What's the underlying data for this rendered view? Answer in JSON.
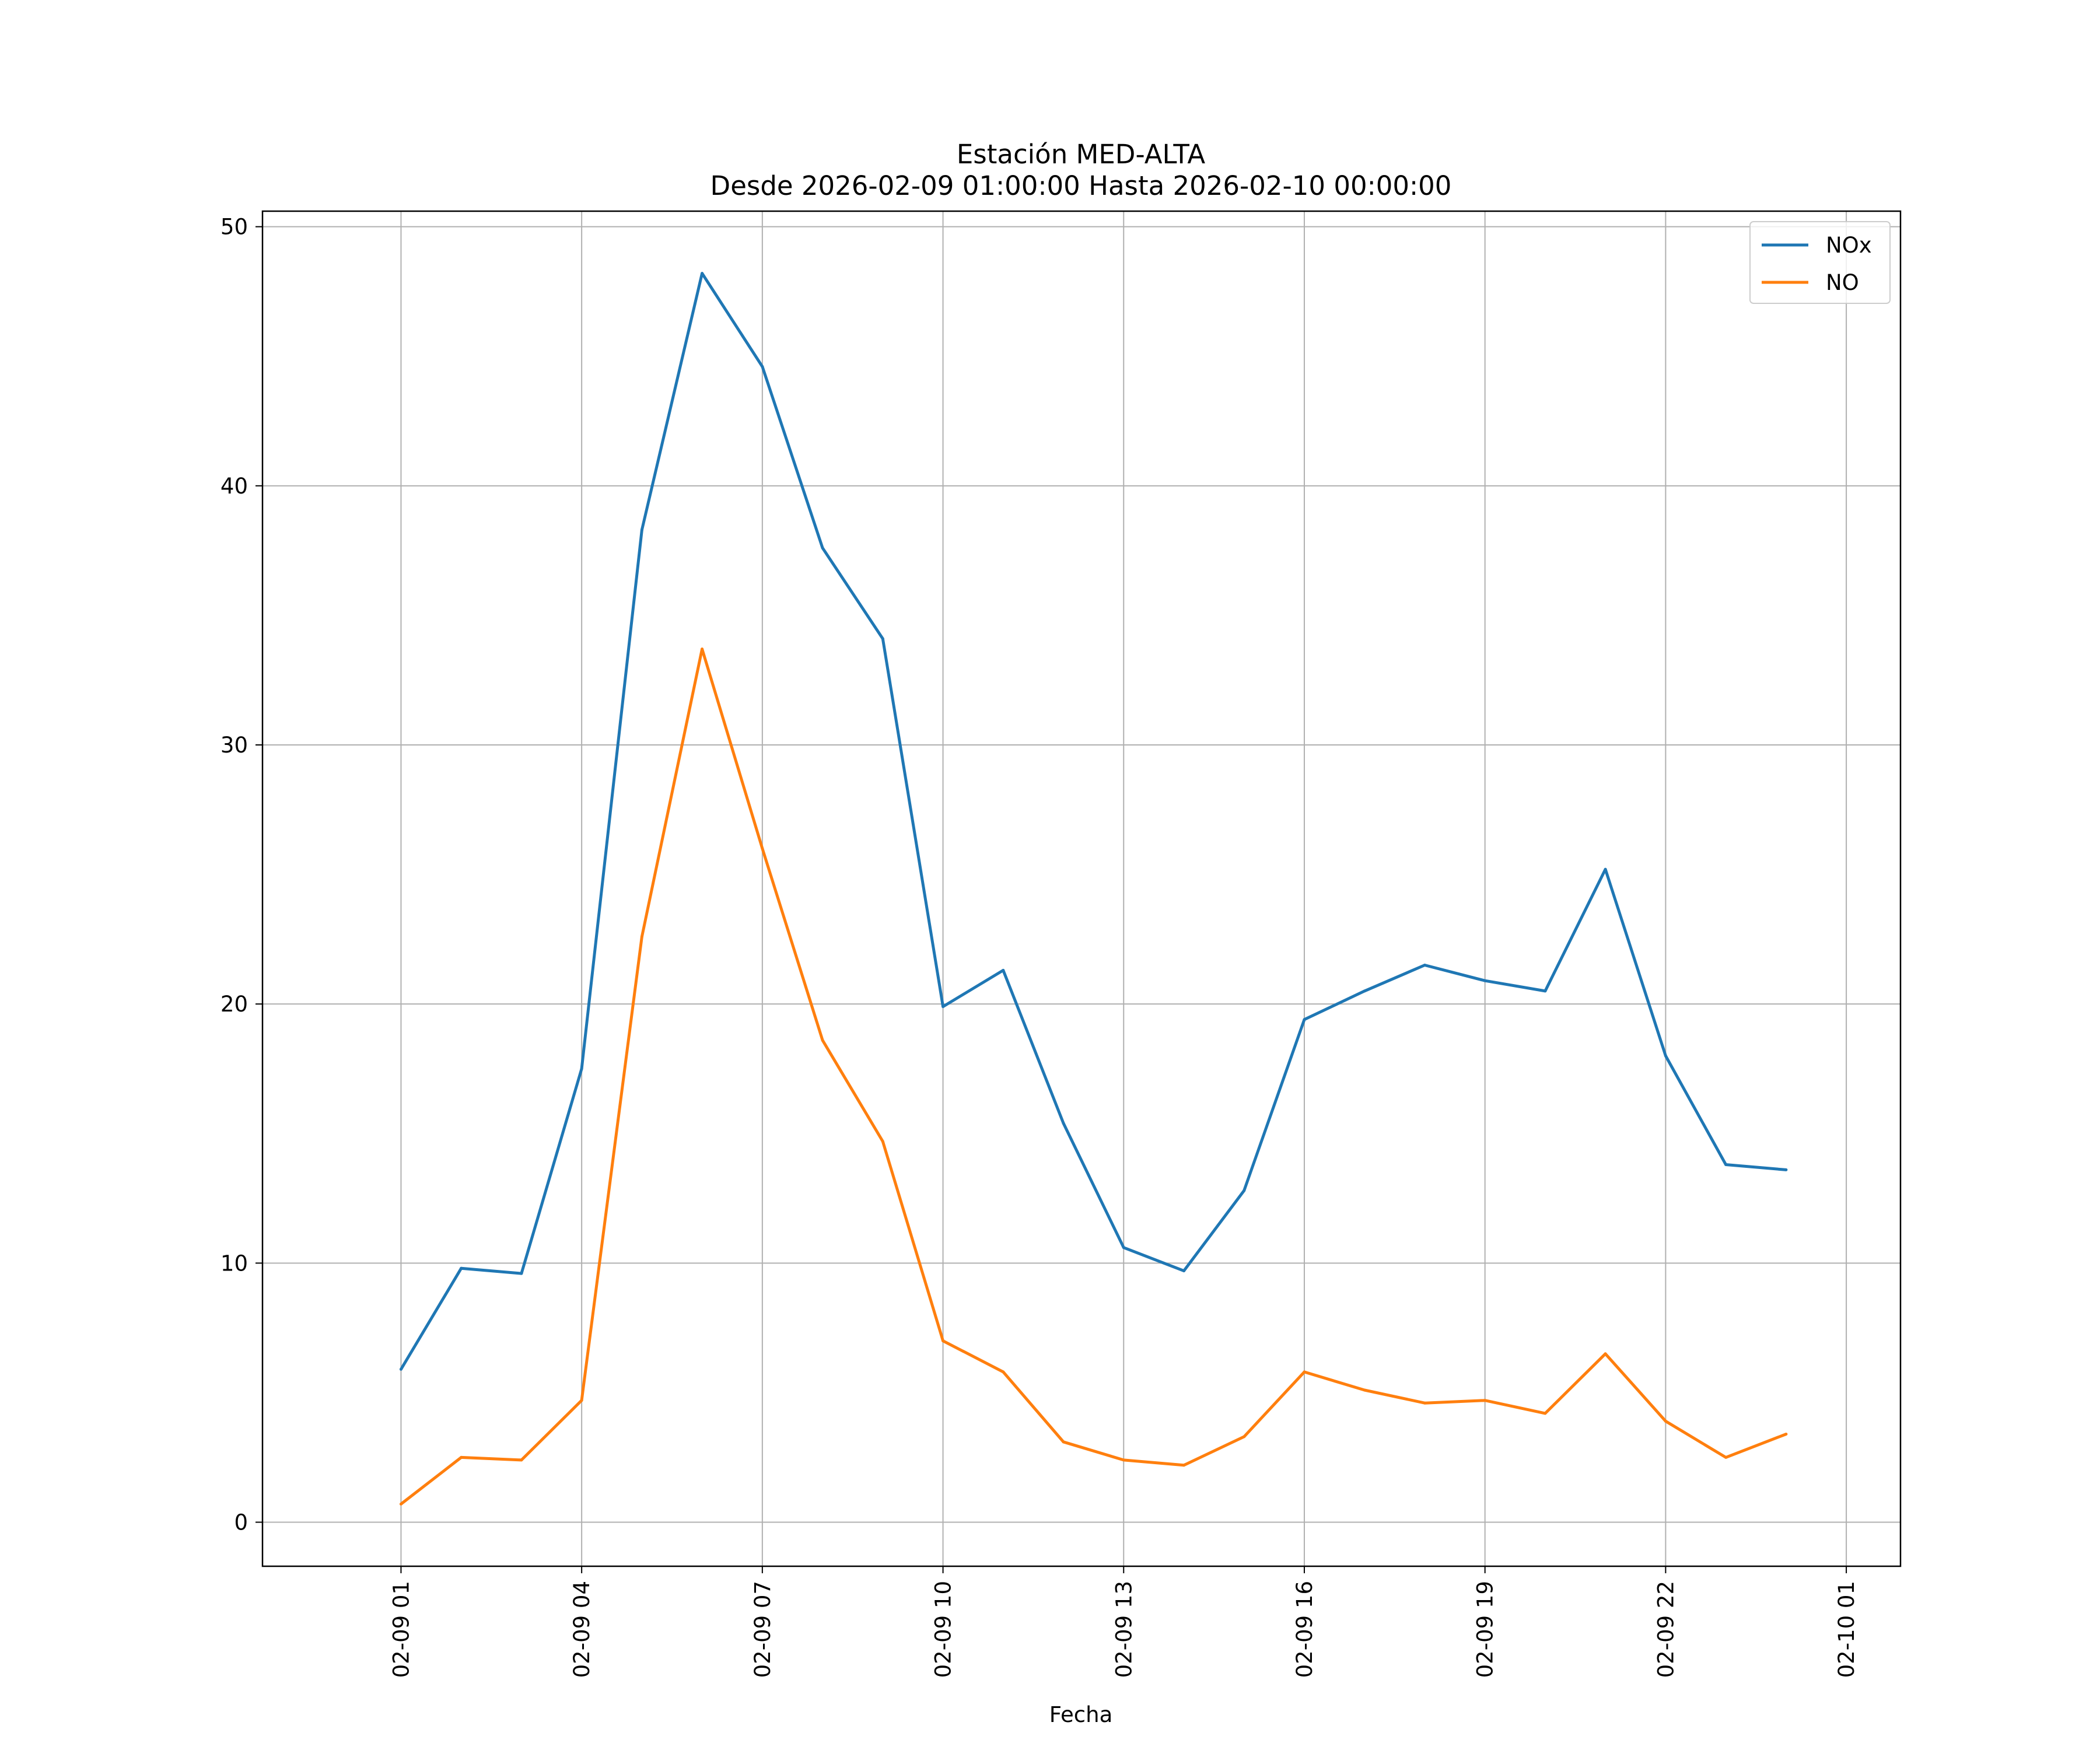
{
  "chart_data": {
    "type": "line",
    "title": "Estación MED-ALTA",
    "subtitle": "Desde 2026-02-09 01:00:00 Hasta 2026-02-10 00:00:00",
    "xlabel": "Fecha",
    "ylabel": "",
    "x": [
      "2026-02-09 01:00",
      "2026-02-09 02:00",
      "2026-02-09 03:00",
      "2026-02-09 04:00",
      "2026-02-09 05:00",
      "2026-02-09 06:00",
      "2026-02-09 07:00",
      "2026-02-09 08:00",
      "2026-02-09 09:00",
      "2026-02-09 10:00",
      "2026-02-09 11:00",
      "2026-02-09 12:00",
      "2026-02-09 13:00",
      "2026-02-09 14:00",
      "2026-02-09 15:00",
      "2026-02-09 16:00",
      "2026-02-09 17:00",
      "2026-02-09 18:00",
      "2026-02-09 19:00",
      "2026-02-09 20:00",
      "2026-02-09 21:00",
      "2026-02-09 22:00",
      "2026-02-09 23:00",
      "2026-02-10 00:00"
    ],
    "series": [
      {
        "name": "NOx",
        "color": "#1f77b4",
        "values": [
          5.9,
          9.8,
          9.6,
          17.5,
          38.3,
          48.2,
          44.6,
          37.6,
          34.1,
          19.9,
          21.3,
          15.4,
          10.6,
          9.7,
          12.8,
          19.4,
          20.5,
          21.5,
          20.9,
          20.5,
          25.2,
          18.0,
          13.8,
          13.6
        ]
      },
      {
        "name": "NO",
        "color": "#ff7f0e",
        "values": [
          0.7,
          2.5,
          2.4,
          4.7,
          22.6,
          33.7,
          26.0,
          18.6,
          14.7,
          7.0,
          5.8,
          3.1,
          2.4,
          2.2,
          3.3,
          5.8,
          5.1,
          4.6,
          4.7,
          4.2,
          6.5,
          3.9,
          2.5,
          3.4
        ]
      }
    ],
    "xticks": [
      "02-09 01",
      "02-09 04",
      "02-09 07",
      "02-09 10",
      "02-09 13",
      "02-09 16",
      "02-09 19",
      "02-09 22",
      "02-10 01"
    ],
    "ytick_labels": [
      "0",
      "10",
      "20",
      "30",
      "40",
      "50"
    ],
    "xlim": [
      "2026-02-08 22:42",
      "2026-02-10 01:54"
    ],
    "ylim": [
      -1.7,
      50.6
    ],
    "grid": true,
    "legend": "top-right"
  }
}
